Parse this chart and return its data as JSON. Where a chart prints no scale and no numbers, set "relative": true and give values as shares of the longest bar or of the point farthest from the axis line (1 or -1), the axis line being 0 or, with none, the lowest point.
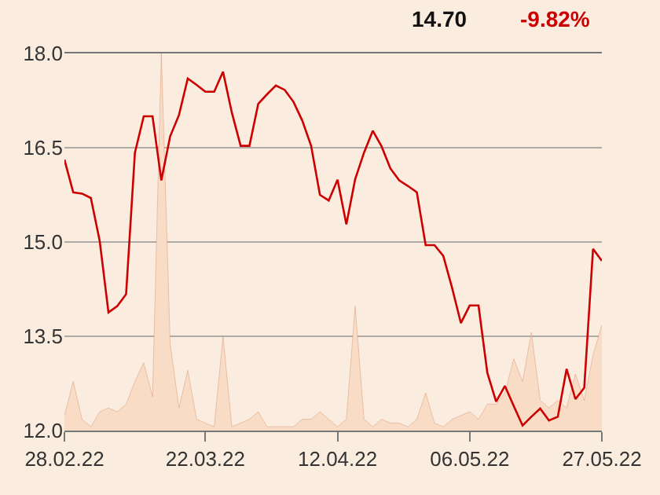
{
  "chart_data": [
    {
      "type": "line",
      "categories": [
        "28.02.22",
        null,
        null,
        null,
        null,
        null,
        null,
        null,
        null,
        null,
        null,
        null,
        null,
        null,
        null,
        null,
        "22.03.22",
        null,
        null,
        null,
        null,
        null,
        null,
        null,
        null,
        null,
        null,
        null,
        null,
        null,
        null,
        "12.04.22",
        null,
        null,
        null,
        null,
        null,
        null,
        null,
        null,
        null,
        null,
        null,
        null,
        null,
        null,
        "06.05.22",
        null,
        null,
        null,
        null,
        null,
        null,
        null,
        null,
        null,
        null,
        null,
        null,
        null,
        null,
        "27.05.22"
      ],
      "series": [
        {
          "color": "#cc0000",
          "values": [
            16.31,
            15.79,
            15.77,
            15.7,
            15.02,
            13.88,
            13.98,
            14.17,
            16.42,
            17.0,
            17.0,
            15.98,
            16.68,
            17.02,
            17.6,
            17.5,
            17.39,
            17.39,
            17.71,
            17.06,
            16.53,
            16.53,
            17.2,
            17.35,
            17.49,
            17.42,
            17.23,
            16.93,
            16.53,
            15.75,
            15.66,
            15.99,
            15.28,
            16.0,
            16.42,
            16.77,
            16.52,
            16.17,
            15.98,
            15.89,
            15.79,
            14.95,
            14.95,
            14.78,
            14.27,
            13.71,
            13.99,
            13.99,
            12.92,
            12.46,
            12.71,
            12.39,
            12.08,
            12.22,
            12.35,
            12.16,
            12.22,
            12.98,
            12.5,
            12.68,
            14.89,
            14.7
          ]
        }
      ],
      "ylim": [
        12.0,
        18.0
      ],
      "yticks": [
        {
          "value": 12.0,
          "label": "12.0"
        },
        {
          "value": 13.5,
          "label": "13.5"
        },
        {
          "value": 15.0,
          "label": "15.0"
        },
        {
          "value": 16.5,
          "label": "16.5"
        },
        {
          "value": 18.0,
          "label": "18.0"
        }
      ],
      "grid": "y",
      "annotations": [
        "14.70",
        "-9.82%"
      ]
    },
    {
      "type": "area",
      "relative": true,
      "color": "#f9dcc6",
      "values": [
        0.04,
        0.13,
        0.03,
        0.01,
        0.05,
        0.06,
        0.05,
        0.07,
        0.13,
        0.18,
        0.09,
        1.0,
        0.23,
        0.06,
        0.16,
        0.03,
        0.02,
        0.01,
        0.25,
        0.01,
        0.02,
        0.03,
        0.05,
        0.01,
        0.01,
        0.01,
        0.01,
        0.03,
        0.03,
        0.05,
        0.03,
        0.01,
        0.03,
        0.33,
        0.03,
        0.01,
        0.03,
        0.02,
        0.02,
        0.01,
        0.03,
        0.1,
        0.02,
        0.01,
        0.03,
        0.04,
        0.05,
        0.03,
        0.07,
        0.07,
        0.1,
        0.19,
        0.13,
        0.26,
        0.08,
        0.06,
        0.08,
        0.06,
        0.15,
        0.08,
        0.2,
        0.28
      ]
    }
  ]
}
